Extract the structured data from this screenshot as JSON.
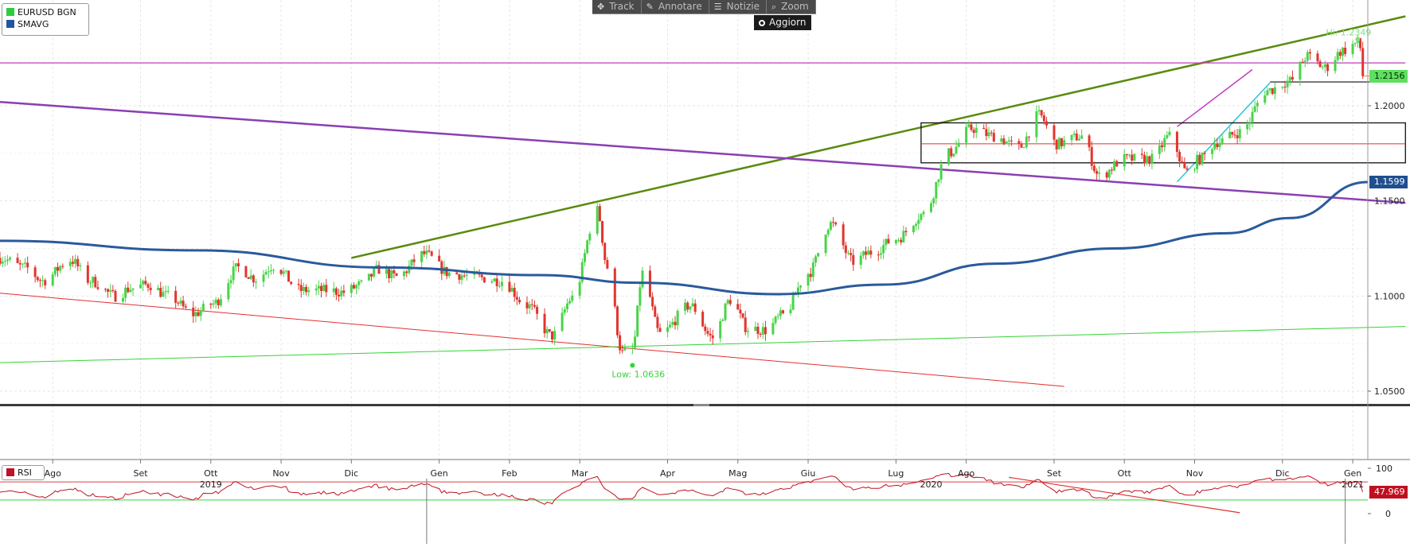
{
  "toolbar": {
    "items": [
      {
        "icon": "crosshair-icon",
        "glyph": "✥",
        "label": "Track"
      },
      {
        "icon": "pencil-icon",
        "glyph": "✎",
        "label": "Annotare"
      },
      {
        "icon": "news-icon",
        "glyph": "☰",
        "label": "Notizie"
      },
      {
        "icon": "magnifier-icon",
        "glyph": "⌕",
        "label": "Zoom"
      }
    ],
    "refresh_label": "Aggiorn"
  },
  "legend": {
    "items": [
      {
        "label": "EURUSD BGN",
        "color": "#2ecc40"
      },
      {
        "label": "SMAVG",
        "color": "#2256a0"
      }
    ]
  },
  "rsi_legend": {
    "label": "RSI",
    "color": "#c0102a"
  },
  "colors": {
    "up": "#4ad34a",
    "down": "#e0362e",
    "sma": "#2a5a9c",
    "rsi": "#c01020"
  },
  "chart_data": {
    "type": "candlestick",
    "instrument": "EURUSD BGN",
    "x_range": [
      "2019-07-15",
      "2021-01-10"
    ],
    "y_range": [
      1.045,
      1.238
    ],
    "y_ticks": [
      "1.0500",
      "1.1000",
      "1.1500",
      "1.2000"
    ],
    "time_axis": {
      "months": [
        {
          "label": "Ago",
          "date": "2019-08-05"
        },
        {
          "label": "Set",
          "date": "2019-09-09"
        },
        {
          "label": "Ott",
          "date": "2019-10-07"
        },
        {
          "label": "Nov",
          "date": "2019-11-04"
        },
        {
          "label": "Dic",
          "date": "2019-12-02"
        },
        {
          "label": "Gen",
          "date": "2020-01-06"
        },
        {
          "label": "Feb",
          "date": "2020-02-03"
        },
        {
          "label": "Mar",
          "date": "2020-03-02"
        },
        {
          "label": "Apr",
          "date": "2020-04-06"
        },
        {
          "label": "Mag",
          "date": "2020-05-04"
        },
        {
          "label": "Giu",
          "date": "2020-06-01"
        },
        {
          "label": "Lug",
          "date": "2020-07-06"
        },
        {
          "label": "Ago",
          "date": "2020-08-03"
        },
        {
          "label": "Set",
          "date": "2020-09-07"
        },
        {
          "label": "Ott",
          "date": "2020-10-05"
        },
        {
          "label": "Nov",
          "date": "2020-11-02"
        },
        {
          "label": "Dic",
          "date": "2020-12-07"
        },
        {
          "label": "Gen",
          "date": "2021-01-04"
        }
      ],
      "years": [
        {
          "label": "2019",
          "date": "2019-10-07"
        },
        {
          "label": "2020",
          "date": "2020-07-20"
        },
        {
          "label": "2021",
          "date": "2021-01-04"
        }
      ],
      "year_separators": [
        "2020-01-01",
        "2021-01-01"
      ]
    },
    "price_path": [
      [
        "2019-07-15",
        1.12
      ],
      [
        "2019-07-25",
        1.115
      ],
      [
        "2019-08-01",
        1.108
      ],
      [
        "2019-08-12",
        1.119
      ],
      [
        "2019-08-20",
        1.108
      ],
      [
        "2019-08-30",
        1.1
      ],
      [
        "2019-09-05",
        1.104
      ],
      [
        "2019-09-12",
        1.106
      ],
      [
        "2019-09-20",
        1.1
      ],
      [
        "2019-09-30",
        1.0905
      ],
      [
        "2019-10-08",
        1.096
      ],
      [
        "2019-10-18",
        1.115
      ],
      [
        "2019-10-25",
        1.109
      ],
      [
        "2019-11-01",
        1.116
      ],
      [
        "2019-11-12",
        1.103
      ],
      [
        "2019-11-22",
        1.103
      ],
      [
        "2019-11-29",
        1.102
      ],
      [
        "2019-12-06",
        1.106
      ],
      [
        "2019-12-13",
        1.114
      ],
      [
        "2019-12-20",
        1.11
      ],
      [
        "2019-12-31",
        1.122
      ],
      [
        "2020-01-10",
        1.112
      ],
      [
        "2020-01-20",
        1.11
      ],
      [
        "2020-01-31",
        1.108
      ],
      [
        "2020-02-10",
        1.095
      ],
      [
        "2020-02-20",
        1.079
      ],
      [
        "2020-02-28",
        1.099
      ],
      [
        "2020-03-09",
        1.145
      ],
      [
        "2020-03-13",
        1.115
      ],
      [
        "2020-03-19",
        1.07
      ],
      [
        "2020-03-23",
        1.072
      ],
      [
        "2020-03-27",
        1.112
      ],
      [
        "2020-04-03",
        1.08
      ],
      [
        "2020-04-15",
        1.095
      ],
      [
        "2020-04-24",
        1.078
      ],
      [
        "2020-05-01",
        1.098
      ],
      [
        "2020-05-08",
        1.083
      ],
      [
        "2020-05-15",
        1.082
      ],
      [
        "2020-05-22",
        1.09
      ],
      [
        "2020-06-01",
        1.112
      ],
      [
        "2020-06-10",
        1.138
      ],
      [
        "2020-06-19",
        1.118
      ],
      [
        "2020-06-26",
        1.123
      ],
      [
        "2020-07-06",
        1.13
      ],
      [
        "2020-07-17",
        1.143
      ],
      [
        "2020-07-27",
        1.175
      ],
      [
        "2020-08-05",
        1.188
      ],
      [
        "2020-08-14",
        1.184
      ],
      [
        "2020-08-24",
        1.178
      ],
      [
        "2020-09-01",
        1.195
      ],
      [
        "2020-09-08",
        1.18
      ],
      [
        "2020-09-18",
        1.184
      ],
      [
        "2020-09-25",
        1.163
      ],
      [
        "2020-10-05",
        1.172
      ],
      [
        "2020-10-16",
        1.172
      ],
      [
        "2020-10-23",
        1.184
      ],
      [
        "2020-10-30",
        1.165
      ],
      [
        "2020-11-04",
        1.172
      ],
      [
        "2020-11-11",
        1.181
      ],
      [
        "2020-11-20",
        1.186
      ],
      [
        "2020-12-01",
        1.208
      ],
      [
        "2020-12-10",
        1.213
      ],
      [
        "2020-12-17",
        1.226
      ],
      [
        "2020-12-24",
        1.22
      ],
      [
        "2020-12-31",
        1.229
      ],
      [
        "2021-01-06",
        1.233
      ],
      [
        "2021-01-10",
        1.2156
      ]
    ],
    "sma_path": [
      [
        "2019-07-15",
        1.129
      ],
      [
        "2019-10-01",
        1.124
      ],
      [
        "2019-12-15",
        1.115
      ],
      [
        "2020-02-15",
        1.111
      ],
      [
        "2020-03-25",
        1.107
      ],
      [
        "2020-05-20",
        1.101
      ],
      [
        "2020-07-01",
        1.106
      ],
      [
        "2020-08-15",
        1.117
      ],
      [
        "2020-10-01",
        1.125
      ],
      [
        "2020-11-15",
        1.133
      ],
      [
        "2020-12-10",
        1.141
      ],
      [
        "2021-01-10",
        1.1599
      ]
    ],
    "rsi_range": [
      -10,
      105
    ],
    "rsi_ticks": [
      0,
      100
    ],
    "rsi_levels": {
      "overbought": 70,
      "oversold": 30
    },
    "rsi_last": 47.969,
    "last_price": 1.2156,
    "sma_last": 1.1599,
    "annotations": {
      "high_label": "Hi: 1.2349",
      "low_label": "Low: 1.0636",
      "high": {
        "date": "2021-01-06",
        "price": 1.2349
      },
      "low": {
        "date": "2020-03-23",
        "price": 1.0636
      },
      "last_price_tag": "1.2156",
      "sma_tag": "1.1599",
      "rsi_tag": "47.969"
    },
    "trendlines": [
      {
        "color": "#5a8a0c",
        "width": 2.5,
        "from": [
          "2019-12-02",
          1.12
        ],
        "to": [
          "2021-01-25",
          1.247
        ]
      },
      {
        "color": "#8a3fb2",
        "width": 2.5,
        "from": [
          "2019-07-15",
          1.202
        ],
        "to": [
          "2021-01-25",
          1.149
        ]
      },
      {
        "color": "#e03030",
        "width": 1,
        "from": [
          "2019-07-15",
          1.1015
        ],
        "to": [
          "2020-09-11",
          1.0525
        ]
      },
      {
        "color": "#35d435",
        "width": 1,
        "from": [
          "2019-07-15",
          1.065
        ],
        "to": [
          "2021-01-25",
          1.084
        ]
      },
      {
        "color": "#c23bc2",
        "width": 1.2,
        "from": [
          "2019-07-15",
          1.2225
        ],
        "to": [
          "2021-01-25",
          1.2225
        ]
      },
      {
        "color": "#c23bc2",
        "width": 1.5,
        "from": [
          "2020-10-26",
          1.189
        ],
        "to": [
          "2020-11-25",
          1.219
        ]
      },
      {
        "color": "#26c6d8",
        "width": 1.5,
        "from": [
          "2020-10-26",
          1.16
        ],
        "to": [
          "2020-12-02",
          1.212
        ]
      },
      {
        "color": "#111111",
        "width": 1.2,
        "from": [
          "2020-12-02",
          1.2125
        ],
        "to": [
          "2021-01-25",
          1.2125
        ]
      },
      {
        "color": "#d8a840",
        "width": 1.2,
        "from": [
          "2021-01-08",
          1.2156
        ],
        "to": [
          "2021-01-25",
          1.2156
        ]
      }
    ],
    "range_box": {
      "from": "2020-07-16",
      "to": "2021-01-25",
      "top": 1.191,
      "bottom": 1.17,
      "mid": 1.18
    }
  }
}
